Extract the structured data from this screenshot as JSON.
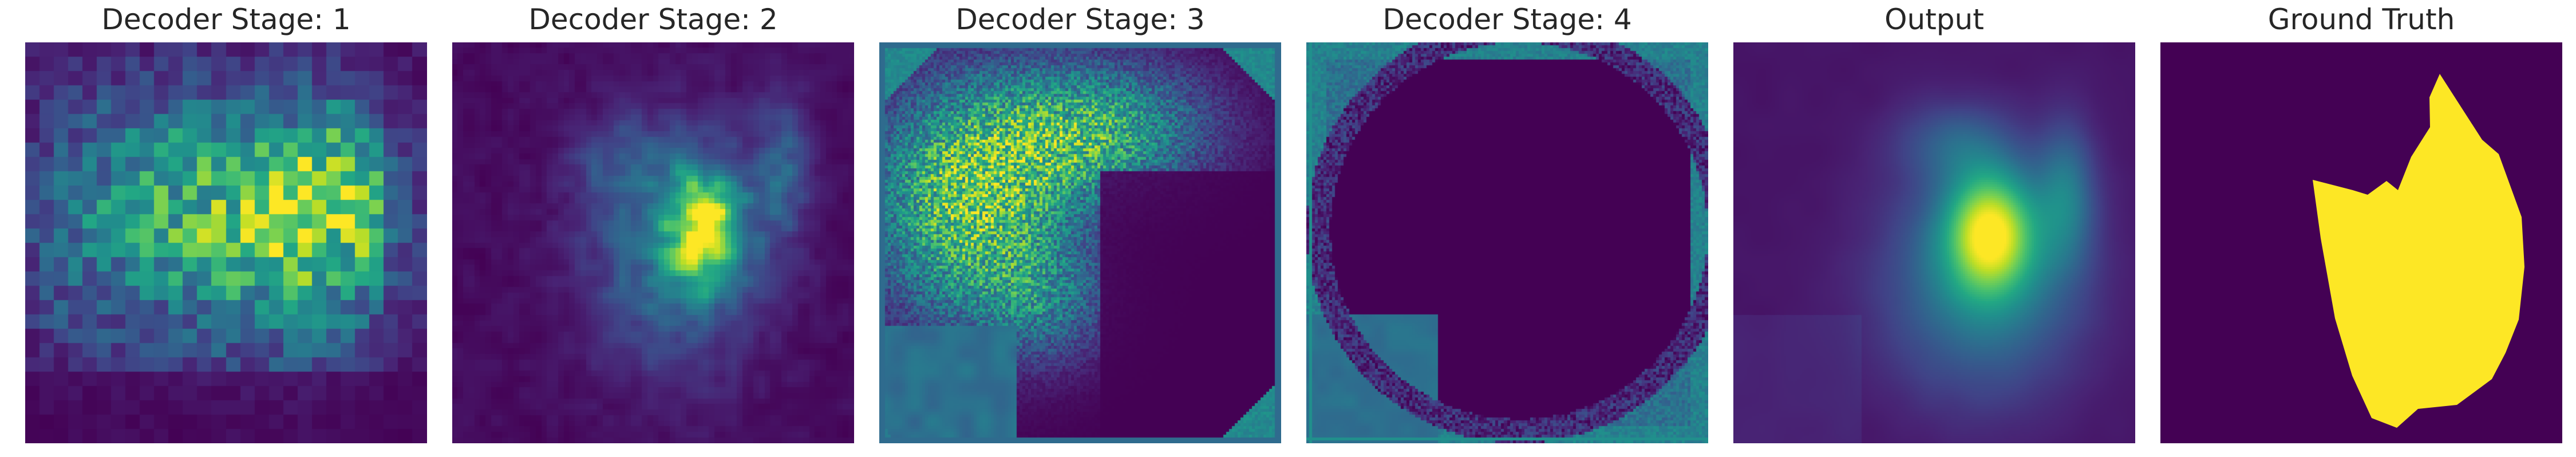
{
  "panels": [
    {
      "id": "stage1",
      "title": "Decoder Stage: 1"
    },
    {
      "id": "stage2",
      "title": "Decoder Stage: 2"
    },
    {
      "id": "stage3",
      "title": "Decoder Stage: 3"
    },
    {
      "id": "stage4",
      "title": "Decoder Stage: 4"
    },
    {
      "id": "output",
      "title": "Output"
    },
    {
      "id": "gt",
      "title": "Ground Truth"
    }
  ],
  "colormap": "viridis",
  "colors": {
    "background": "#440154",
    "mask": "#fde725"
  }
}
